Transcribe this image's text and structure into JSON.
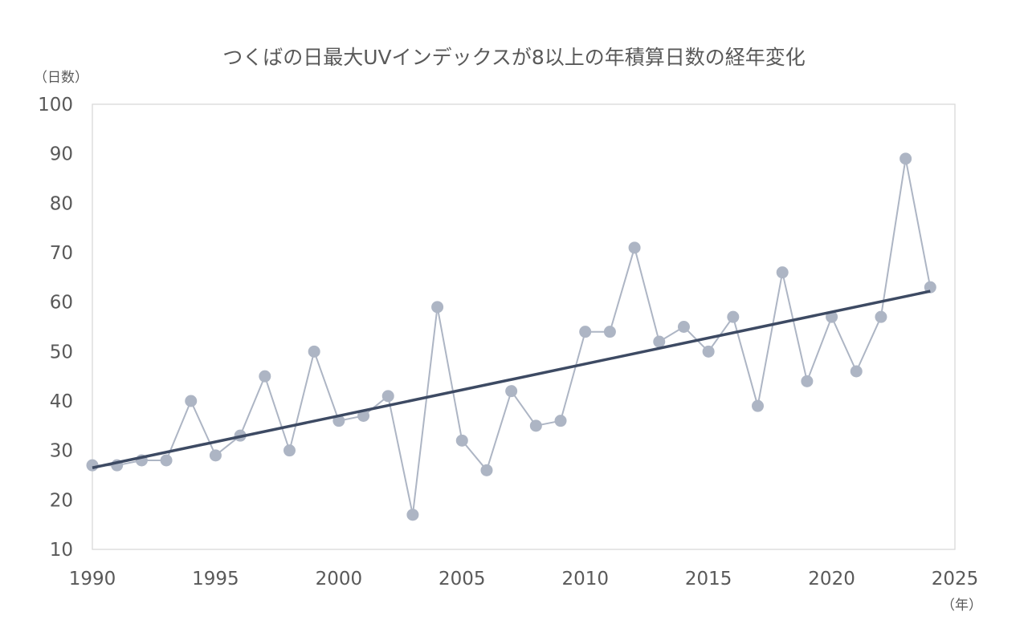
{
  "chart_data": {
    "type": "line",
    "title": "つくばの日最大UVインデックスが8以上の年積算日数の経年変化",
    "ylabel": "（日数）",
    "xlabel": "（年）",
    "xlim": [
      1990,
      2025
    ],
    "ylim": [
      10,
      100
    ],
    "x_ticks": [
      1990,
      1995,
      2000,
      2005,
      2010,
      2015,
      2020,
      2025
    ],
    "y_ticks": [
      10,
      20,
      30,
      40,
      50,
      60,
      70,
      80,
      90,
      100
    ],
    "grid": false,
    "series": [
      {
        "x": [
          1990,
          1991,
          1992,
          1993,
          1994,
          1995,
          1996,
          1997,
          1998,
          1999,
          2000,
          2001,
          2002,
          2003,
          2004,
          2005,
          2006,
          2007,
          2008,
          2009,
          2010,
          2011,
          2012,
          2013,
          2014,
          2015,
          2016,
          2017,
          2018,
          2019,
          2020,
          2021,
          2022,
          2023,
          2024
        ],
        "values": [
          27,
          27,
          28,
          28,
          40,
          29,
          33,
          45,
          30,
          50,
          36,
          37,
          41,
          17,
          59,
          32,
          26,
          42,
          35,
          36,
          54,
          54,
          71,
          52,
          55,
          50,
          57,
          39,
          66,
          44,
          57,
          46,
          57,
          89,
          63
        ],
        "color": "#adb5c4"
      }
    ],
    "trend_line": {
      "x": [
        1990,
        2024
      ],
      "values": [
        26.5,
        62.2
      ],
      "color": "#3d4a63"
    }
  }
}
